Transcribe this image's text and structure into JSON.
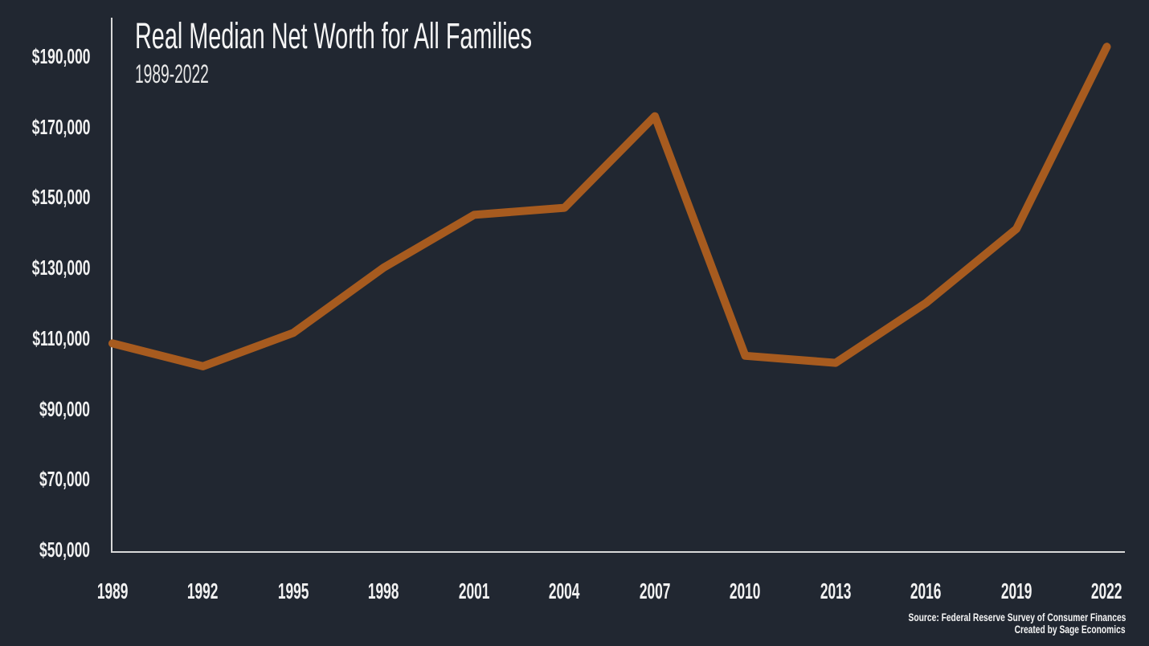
{
  "chart_data": {
    "type": "line",
    "title": "Real Median Net Worth for All Families",
    "subtitle": "1989-2022",
    "categories": [
      "1989",
      "1992",
      "1995",
      "1998",
      "2001",
      "2004",
      "2007",
      "2010",
      "2013",
      "2016",
      "2019",
      "2022"
    ],
    "values": [
      108500,
      102000,
      111500,
      130000,
      145000,
      147000,
      173000,
      105000,
      103000,
      120000,
      141000,
      192700
    ],
    "series_name": "Real median net worth (all families)",
    "ylim": [
      50000,
      190000
    ],
    "y_tick_step": 20000,
    "y_tick_labels": [
      "$50,000",
      "$70,000",
      "$90,000",
      "$110,000",
      "$130,000",
      "$150,000",
      "$170,000",
      "$190,000"
    ],
    "grid": "off",
    "legend": "none",
    "line_color": "#A75B1F",
    "axis_color": "#D9D9D9",
    "background_color": "#212731",
    "text_color": "#F2F2F2"
  },
  "source": {
    "line1": "Source: Federal Reserve Survey of Consumer Finances",
    "line2": "Created by Sage Economics"
  }
}
